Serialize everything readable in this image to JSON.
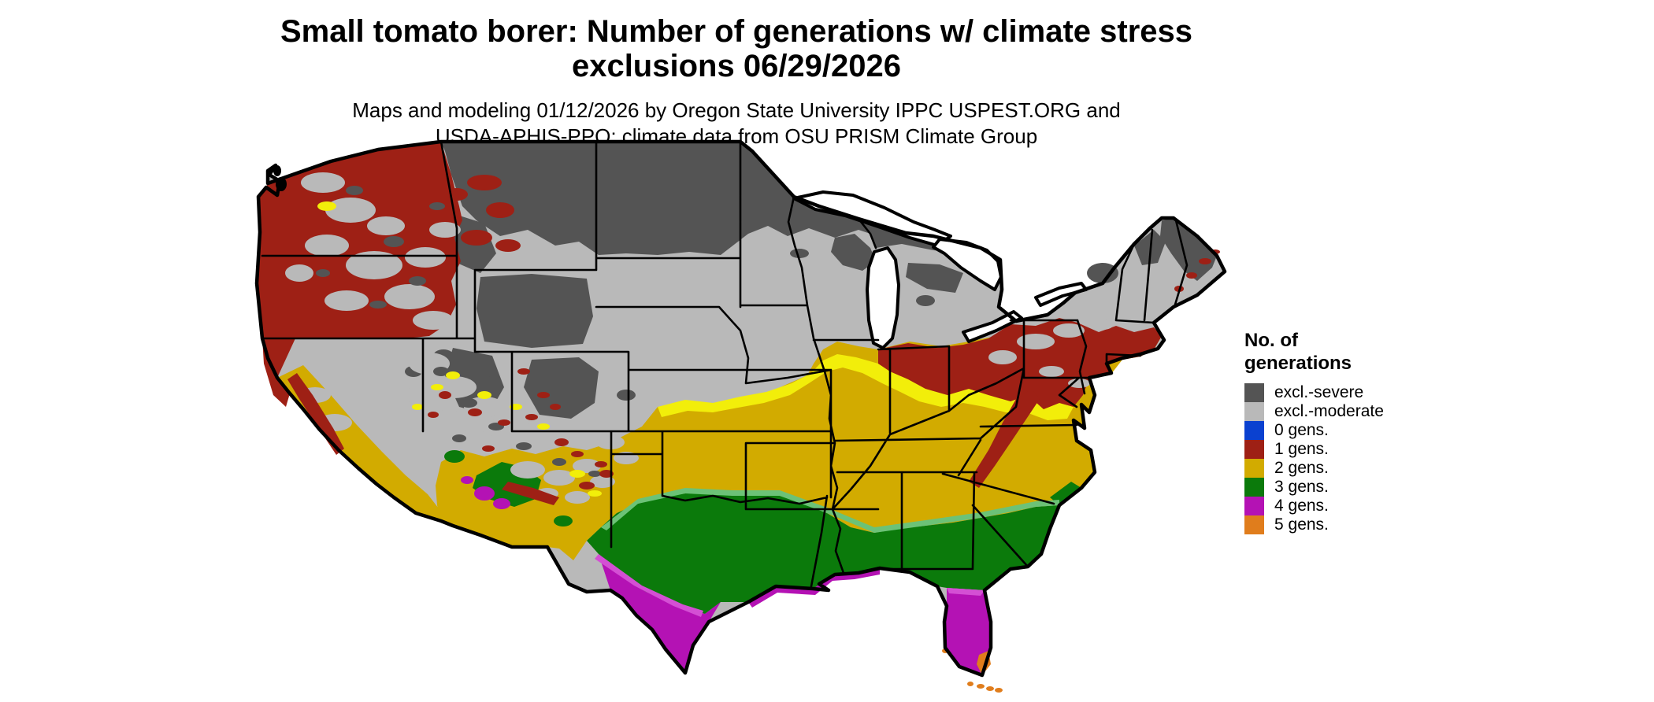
{
  "header": {
    "title_line1": "Small tomato borer: Number of generations w/ climate stress",
    "title_line2": "exclusions 06/29/2026",
    "subtitle_line1": "Maps and modeling 01/12/2026 by Oregon State University IPPC USPEST.ORG and",
    "subtitle_line2": "USDA-APHIS-PPQ; climate data from OSU PRISM Climate Group"
  },
  "legend": {
    "title_line1": "No. of",
    "title_line2": "generations",
    "items": [
      {
        "label": "excl.-severe",
        "color": "#545454"
      },
      {
        "label": "excl.-moderate",
        "color": "#b9b9b9"
      },
      {
        "label": "0 gens.",
        "color": "#0a41d0"
      },
      {
        "label": "1 gens.",
        "color": "#9e2015"
      },
      {
        "label": "2 gens.",
        "color": "#d2ab00"
      },
      {
        "label": "3 gens.",
        "color": "#0b7a0b"
      },
      {
        "label": "4 gens.",
        "color": "#b412b4"
      },
      {
        "label": "5 gens.",
        "color": "#e07d1c"
      }
    ]
  },
  "colors": {
    "background": "#ffffff",
    "map_outline": "#000000",
    "excl_severe": "#545454",
    "excl_moderate": "#b9b9b9",
    "gens0": "#0a41d0",
    "gens1": "#9e2015",
    "gens2": "#d2ab00",
    "gens3": "#0b7a0b",
    "gens4": "#b412b4",
    "gens5": "#e07d1c",
    "transition_yellow": "#f2ee0a",
    "transition_green": "#6cc277",
    "transition_magenta": "#d44fd4",
    "water": "#ffffff"
  },
  "map_description": "Contiguous United States raster map of small tomato borer generations with climate stress exclusions"
}
